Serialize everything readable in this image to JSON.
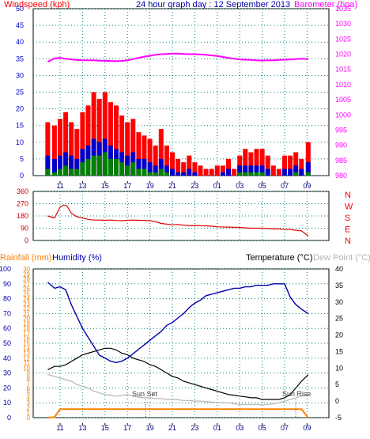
{
  "header": {
    "left_title": "Windspeed (kph)",
    "center_title": "24 hour graph day : 12 September 2013",
    "right_title": "Barometer (hpa)"
  },
  "colors": {
    "wind_gust": "#ff0000",
    "wind_avg": "#0000cc",
    "wind_low": "#008000",
    "barometer": "#ff00ff",
    "wind_dir": "#dd0000",
    "dir_letters": "#ff0000",
    "humidity": "#0000aa",
    "temperature": "#000000",
    "dewpoint": "#b4b4b4",
    "rain": "#ff8000",
    "grid": "#008080",
    "axis": "#000000"
  },
  "x_ticks": [
    "11",
    "13",
    "15",
    "17",
    "19",
    "21",
    "23",
    "01",
    "03",
    "05",
    "07",
    "09"
  ],
  "chart_data": [
    {
      "type": "line",
      "name": "wind-and-barometer",
      "title": "24 hour graph day : 12 September 2013",
      "ylabel_left": "Windspeed (kph)",
      "ylabel_right": "Barometer (hpa)",
      "ylim_left": [
        0,
        50
      ],
      "ylim_right": [
        980,
        1035
      ],
      "yticks_left": [
        "0",
        "5",
        "10",
        "15",
        "20",
        "25",
        "30",
        "35",
        "40",
        "45",
        "50"
      ],
      "yticks_right": [
        "980",
        "985",
        "990",
        "995",
        "1000",
        "1005",
        "1010",
        "1015",
        "1020",
        "1025",
        "1030",
        "1035"
      ],
      "x": [
        9.9,
        10.5,
        11,
        11.5,
        12,
        12.5,
        13,
        13.5,
        14,
        14.5,
        15,
        15.5,
        16,
        16.5,
        17,
        17.5,
        18,
        18.5,
        19,
        19.5,
        20,
        20.5,
        21,
        21.5,
        22,
        22.5,
        23,
        23.5,
        24,
        24.5,
        25,
        25.5,
        26,
        26.5,
        27,
        27.5,
        28,
        28.5,
        29,
        29.5,
        30,
        30.5,
        31,
        31.5,
        32,
        32.5,
        33.1
      ],
      "series": [
        {
          "name": "gust",
          "values": [
            16,
            15,
            17,
            19,
            16,
            14,
            19,
            21,
            25,
            23,
            25,
            22,
            21,
            18,
            16,
            17,
            13,
            12,
            11,
            9,
            14,
            9,
            7,
            5,
            4,
            6,
            4,
            3,
            2,
            2,
            3,
            3,
            5,
            2,
            6,
            8,
            7,
            8,
            8,
            6,
            3,
            2,
            6,
            6,
            7,
            5,
            10
          ]
        },
        {
          "name": "average",
          "values": [
            6,
            5,
            6,
            7,
            6,
            5,
            8,
            9,
            11,
            10,
            11,
            9,
            8,
            7,
            6,
            7,
            5,
            5,
            4,
            3,
            5,
            3,
            2,
            1,
            1,
            2,
            1,
            0,
            0,
            0,
            0,
            1,
            2,
            0,
            3,
            3,
            3,
            3,
            3,
            2,
            0,
            0,
            2,
            2,
            3,
            2,
            4
          ]
        },
        {
          "name": "low",
          "values": [
            2,
            1,
            2,
            3,
            2,
            2,
            4,
            5,
            6,
            6,
            7,
            5,
            5,
            4,
            3,
            4,
            2,
            2,
            1,
            1,
            2,
            1,
            0,
            0,
            0,
            0,
            0,
            0,
            0,
            0,
            0,
            0,
            0,
            0,
            1,
            1,
            1,
            1,
            1,
            0,
            0,
            0,
            0,
            0,
            1,
            0,
            1
          ]
        },
        {
          "name": "barometer",
          "values": [
            1017.5,
            1018.6,
            1018.8,
            1018.5,
            1018.3,
            1018.1,
            1018,
            1018,
            1018,
            1017.9,
            1017.8,
            1017.8,
            1017.7,
            1017.8,
            1018,
            1018.4,
            1018.8,
            1019.2,
            1019.5,
            1019.8,
            1020,
            1020.1,
            1020.2,
            1020.2,
            1020.1,
            1020,
            1020,
            1019.9,
            1019.8,
            1019.6,
            1019.4,
            1019.1,
            1018.8,
            1018.5,
            1018.3,
            1018.2,
            1018.1,
            1018,
            1017.9,
            1018,
            1018,
            1018.1,
            1018.2,
            1018.3,
            1018.4,
            1018.5,
            1018.4
          ]
        }
      ]
    },
    {
      "type": "line",
      "name": "wind-direction",
      "ylim": [
        0,
        360
      ],
      "yticks": [
        "0",
        "90",
        "180",
        "270",
        "360"
      ],
      "direction_labels": [
        "N",
        "W",
        "S",
        "E",
        "N"
      ],
      "x": [
        9.9,
        10.5,
        11,
        11.3,
        11.6,
        12,
        12.5,
        13,
        13.5,
        14,
        14.5,
        15,
        15.5,
        16,
        16.5,
        17,
        17.5,
        18,
        18.5,
        19,
        19.5,
        20,
        20.5,
        21,
        21.5,
        22,
        22.5,
        23,
        23.5,
        24,
        24.5,
        25,
        26,
        27,
        28,
        29,
        30,
        30.5,
        31,
        31.5,
        32,
        32.5,
        33,
        33.1
      ],
      "series": [
        {
          "name": "direction",
          "values": [
            180,
            165,
            245,
            260,
            255,
            200,
            175,
            165,
            155,
            150,
            150,
            148,
            150,
            147,
            145,
            148,
            150,
            148,
            147,
            145,
            138,
            125,
            120,
            115,
            118,
            112,
            110,
            110,
            108,
            107,
            105,
            100,
            98,
            95,
            90,
            90,
            85,
            85,
            80,
            80,
            75,
            70,
            40,
            30
          ]
        }
      ]
    },
    {
      "type": "line",
      "name": "temperature-humidity-rain",
      "ylabel_left_outer": "Rainfall (mm)",
      "ylabel_left_inner": "Humidity (%)",
      "ylabel_right": "Temperature (°C)",
      "ylabel_right2": "Dew Point (°C)",
      "yticks_rain": [
        "0",
        "1",
        "2",
        "3",
        "4",
        "5",
        "6",
        "7",
        "8",
        "9",
        "10",
        "11",
        "12",
        "13",
        "14",
        "15",
        "16",
        "17",
        "18",
        "19",
        "20",
        "21",
        "22",
        "23",
        "24",
        "25",
        "26",
        "27",
        "28",
        "29",
        "30"
      ],
      "yticks_humidity": [
        "0",
        "10",
        "20",
        "30",
        "40",
        "50",
        "60",
        "70",
        "80",
        "90",
        "100"
      ],
      "yticks_temp": [
        "-5",
        "0",
        "5",
        "10",
        "15",
        "20",
        "25",
        "30",
        "35",
        "40"
      ],
      "ylim_temp": [
        -5,
        40
      ],
      "ylim_humidity": [
        0,
        100
      ],
      "annotations": [
        "Sun Set",
        "Sun Rise"
      ],
      "x": [
        9.9,
        10.5,
        11,
        11.5,
        12,
        12.5,
        13,
        13.5,
        14,
        14.5,
        15,
        15.5,
        16,
        16.5,
        17,
        17.5,
        18,
        18.5,
        19,
        19.5,
        20,
        20.5,
        21,
        21.5,
        22,
        22.5,
        23,
        23.5,
        24,
        24.5,
        25,
        25.5,
        26,
        26.5,
        27,
        27.5,
        28,
        28.5,
        29,
        29.5,
        30,
        30.5,
        31,
        31.5,
        32,
        32.5,
        33.1
      ],
      "series": [
        {
          "name": "humidity",
          "values": [
            91,
            87,
            88,
            86,
            76,
            68,
            60,
            54,
            48,
            42,
            40,
            38,
            37,
            38,
            40,
            43,
            46,
            49,
            52,
            55,
            58,
            62,
            64,
            67,
            70,
            74,
            77,
            79,
            82,
            83,
            84,
            85,
            86,
            87,
            87,
            88,
            88,
            89,
            89,
            89,
            90,
            90,
            90,
            81,
            76,
            73,
            70
          ]
        },
        {
          "name": "temperature",
          "values": [
            9.5,
            10.5,
            10.5,
            11,
            12,
            13,
            14,
            14.5,
            15,
            15.5,
            16,
            16,
            15.5,
            14.5,
            14,
            13,
            12.5,
            12,
            11,
            10.5,
            9.5,
            8.5,
            7.5,
            7,
            6,
            5.5,
            5,
            4.5,
            4,
            3.5,
            3,
            2.5,
            2,
            1.8,
            1.5,
            1.3,
            1,
            1,
            0.5,
            0.5,
            0.5,
            0.5,
            1,
            2,
            4,
            6,
            8
          ]
        },
        {
          "name": "dewpoint",
          "values": [
            8,
            7.5,
            7,
            6.5,
            6,
            5,
            4.5,
            4,
            3,
            2.5,
            2,
            1.8,
            1.5,
            1.7,
            2,
            1.5,
            1.2,
            1,
            1,
            0.8,
            0.8,
            0.5,
            0.5,
            0.4,
            0.2,
            0.2,
            0,
            0,
            -0.2,
            -0.3,
            -0.4,
            -0.5,
            -0.5,
            -0.8,
            -1,
            -1,
            -1,
            -1,
            -1.2,
            -1,
            -0.8,
            -0.5,
            0,
            0.5,
            1,
            1.5,
            2
          ]
        },
        {
          "name": "rainfall",
          "values": [
            0,
            0.1,
            1.7,
            1.7,
            1.7,
            1.7,
            1.7,
            1.7,
            1.7,
            1.7,
            1.7,
            1.7,
            1.7,
            1.7,
            1.7,
            1.7,
            1.7,
            1.7,
            1.7,
            1.7,
            1.7,
            1.7,
            1.7,
            1.7,
            1.7,
            1.7,
            1.7,
            1.7,
            1.7,
            1.7,
            1.7,
            1.7,
            1.7,
            1.7,
            1.7,
            1.7,
            1.7,
            1.7,
            1.7,
            1.7,
            1.7,
            1.7,
            1.7,
            1.7,
            1.7,
            1.7,
            0
          ]
        }
      ]
    }
  ]
}
